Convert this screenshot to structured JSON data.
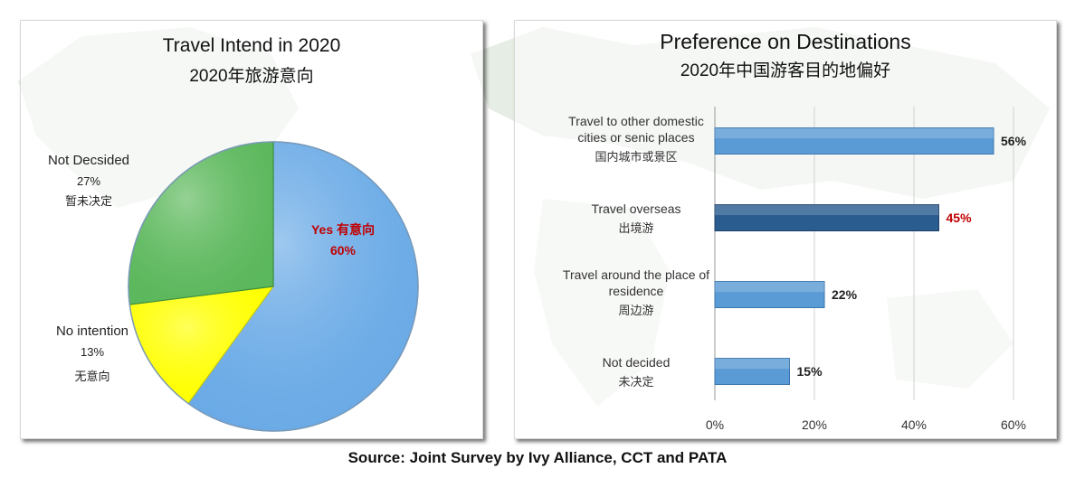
{
  "footer": {
    "source": "Source: Joint Survey by Ivy Alliance, CCT and PATA"
  },
  "colors": {
    "yes": "#6aaae6",
    "no_intention": "#ffff00",
    "not_decided": "#5cb85c",
    "bar": "#5b9bd5",
    "bar_highlight": "#2a5c8f",
    "highlight_text": "#c00000"
  },
  "chart_data": [
    {
      "type": "pie",
      "title": "Travel Intend in 2020",
      "subtitle": "2020年旅游意向",
      "slices": [
        {
          "label": "Yes 有意向",
          "value": 60,
          "value_label": "60%"
        },
        {
          "label": "No intention",
          "sublabel": "无意向",
          "value": 13,
          "value_label": "13%"
        },
        {
          "label": "Not Decsided",
          "sublabel": "暂未决定",
          "value": 27,
          "value_label": "27%"
        }
      ]
    },
    {
      "type": "bar",
      "orientation": "horizontal",
      "title": "Preference on Destinations",
      "subtitle": "2020年中国游客目的地偏好",
      "categories": [
        {
          "label": "Travel to other domestic cities or senic places",
          "sublabel": "国内城市或景区"
        },
        {
          "label": "Travel overseas",
          "sublabel": "出境游"
        },
        {
          "label": "Travel around the place of residence",
          "sublabel": "周边游"
        },
        {
          "label": "Not decided",
          "sublabel": "未决定"
        }
      ],
      "values": [
        56,
        45,
        22,
        15
      ],
      "value_labels": [
        "56%",
        "45%",
        "22%",
        "15%"
      ],
      "highlight_index": 1,
      "xlim": [
        0,
        60
      ],
      "xticks": [
        "0%",
        "20%",
        "40%",
        "60%"
      ],
      "grid": true
    }
  ]
}
